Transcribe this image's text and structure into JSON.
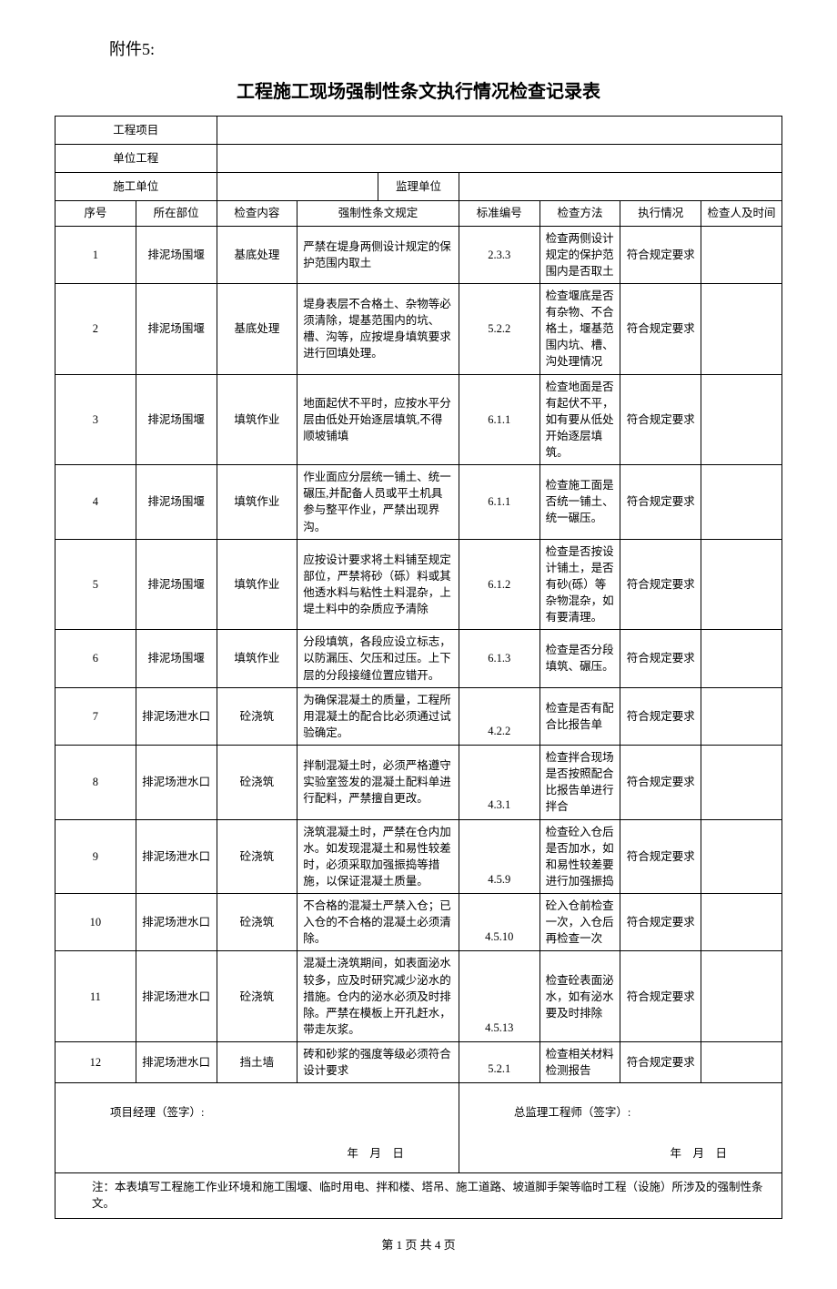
{
  "attachment_label": "附件5:",
  "title": "工程施工现场强制性条文执行情况检查记录表",
  "header_rows": {
    "project_label": "工程项目",
    "unit_label": "单位工程",
    "construction_label": "施工单位",
    "supervisor_label": "监理单位"
  },
  "columns": {
    "seq": "序号",
    "loc": "所在部位",
    "content": "检查内容",
    "rule": "强制性条文规定",
    "std": "标准编号",
    "method": "检查方法",
    "exec": "执行情况",
    "inspector": "检查人及时间"
  },
  "rows": [
    {
      "n": "1",
      "loc": "排泥场围堰",
      "content": "基底处理",
      "rule": "严禁在堤身两侧设计规定的保护范围内取土",
      "std": "2.3.3",
      "method": "检查两侧设计规定的保护范围内是否取土",
      "exec": "符合规定要求"
    },
    {
      "n": "2",
      "loc": "排泥场围堰",
      "content": "基底处理",
      "rule": "堤身表层不合格土、杂物等必须清除，堤基范围内的坑、槽、沟等，应按堤身填筑要求进行回填处理。",
      "std": "5.2.2",
      "method": "检查堰底是否有杂物、不合格土，堰基范围内坑、槽、沟处理情况",
      "exec": "符合规定要求"
    },
    {
      "n": "3",
      "loc": "排泥场围堰",
      "content": "填筑作业",
      "rule": "地面起伏不平时，应按水平分层由低处开始逐层填筑,不得顺坡铺填",
      "std": "6.1.1",
      "method": "检查地面是否有起伏不平，如有要从低处开始逐层填筑。",
      "exec": "符合规定要求"
    },
    {
      "n": "4",
      "loc": "排泥场围堰",
      "content": "填筑作业",
      "rule": "作业面应分层统一铺土、统一碾压,并配备人员或平土机具参与整平作业，严禁出现界沟。",
      "std": "6.1.1",
      "method": "检查施工面是否统一铺土、统一碾压。",
      "exec": "符合规定要求"
    },
    {
      "n": "5",
      "loc": "排泥场围堰",
      "content": "填筑作业",
      "rule": "应按设计要求将土料铺至规定部位，严禁将砂（砾）料或其他透水料与粘性土料混杂，上堤土料中的杂质应予清除",
      "std": "6.1.2",
      "method": "检查是否按设计铺土，是否有砂(砾）等杂物混杂，如有要清理。",
      "exec": "符合规定要求"
    },
    {
      "n": "6",
      "loc": "排泥场围堰",
      "content": "填筑作业",
      "rule": "分段填筑，各段应设立标志，以防漏压、欠压和过压。上下层的分段接缝位置应错开。",
      "std": "6.1.3",
      "method": "检查是否分段填筑、碾压。",
      "exec": "符合规定要求"
    },
    {
      "n": "7",
      "loc": "排泥场泄水口",
      "content": "砼浇筑",
      "rule": "为确保混凝土的质量，工程所用混凝土的配合比必须通过试验确定。",
      "std": "4.2.2",
      "method": "检查是否有配合比报告单",
      "exec": "符合规定要求"
    },
    {
      "n": "8",
      "loc": "排泥场泄水口",
      "content": "砼浇筑",
      "rule": "拌制混凝土时，必须严格遵守实验室签发的混凝土配料单进行配料，严禁擅自更改。",
      "std": "4.3.1",
      "method": "检查拌合现场是否按照配合比报告单进行拌合",
      "exec": "符合规定要求"
    },
    {
      "n": "9",
      "loc": "排泥场泄水口",
      "content": "砼浇筑",
      "rule": "浇筑混凝土时，严禁在仓内加水。如发现混凝土和易性较差时，必须采取加强振捣等措施，以保证混凝土质量。",
      "std": "4.5.9",
      "method": "检查砼入仓后是否加水，如和易性较差要进行加强振捣",
      "exec": "符合规定要求"
    },
    {
      "n": "10",
      "loc": "排泥场泄水口",
      "content": "砼浇筑",
      "rule": "不合格的混凝土严禁入仓；已入仓的不合格的混凝土必须清除。",
      "std": "4.5.10",
      "method": "砼入仓前检查一次，入仓后再检查一次",
      "exec": "符合规定要求"
    },
    {
      "n": "11",
      "loc": "排泥场泄水口",
      "content": "砼浇筑",
      "rule": "混凝土浇筑期间，如表面泌水较多，应及时研究减少泌水的措施。仓内的泌水必须及时排除。严禁在模板上开孔赶水，带走灰浆。",
      "std": "4.5.13",
      "method": "检查砼表面泌水，如有泌水要及时排除",
      "exec": "符合规定要求"
    },
    {
      "n": "12",
      "loc": "排泥场泄水口",
      "content": "挡土墙",
      "rule": "砖和砂浆的强度等级必须符合设计要求",
      "std": "5.2.1",
      "method": "检查相关材料检测报告",
      "exec": "符合规定要求"
    }
  ],
  "signature": {
    "pm_label": "项目经理（签字）:",
    "supervisor_label": "总监理工程师（签字）:",
    "date_text": "年　月　日"
  },
  "note": "注：本表填写工程施工作业环境和施工围堰、临时用电、拌和楼、塔吊、施工道路、坡道脚手架等临时工程（设施）所涉及的强制性条文。",
  "footer": "第 1 页 共 4 页"
}
